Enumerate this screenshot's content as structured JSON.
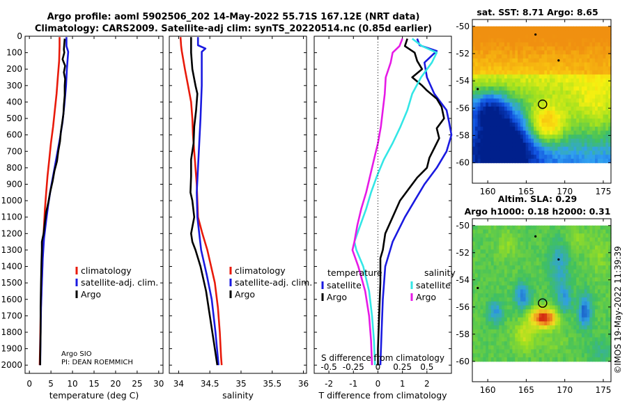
{
  "header": {
    "title_line1": "Argo profile: aoml 5902506_202 14-May-2022 55.71S 167.12E (NRT data)",
    "title_line2": "Climatology: CARS2009. Satellite-adj clim: synTS_20220514.nc (0.85d earlier)"
  },
  "credit": "©IMOS 19-May-2022 11:39:39",
  "colors": {
    "climatology": "#e81a0a",
    "satellite": "#1a1ae0",
    "argo": "#000000",
    "sat_salinity": "#33e6e6",
    "argo_salinity_diff": "#e61ae6"
  },
  "chart_data": [
    {
      "type": "line",
      "id": "temperature-panel",
      "xlabel": "temperature (deg C)",
      "ylabel": "",
      "xlim": [
        -1,
        31
      ],
      "ylim": [
        2050,
        0
      ],
      "xticks": [
        "0",
        "5",
        "10",
        "15",
        "20",
        "25",
        "30"
      ],
      "yticks": [
        "0",
        "100",
        "200",
        "300",
        "400",
        "500",
        "600",
        "700",
        "800",
        "900",
        "1000",
        "1100",
        "1200",
        "1300",
        "1400",
        "1500",
        "1600",
        "1700",
        "1800",
        "1900",
        "2000"
      ],
      "legend_position": "lower-right",
      "annotation_lines": [
        "Argo SIO",
        "PI: DEAN ROEMMICH"
      ],
      "series": [
        {
          "name": "climatology",
          "color": "#e81a0a",
          "points": [
            [
              7.0,
              5
            ],
            [
              7.0,
              60
            ],
            [
              6.9,
              150
            ],
            [
              6.6,
              250
            ],
            [
              6.3,
              350
            ],
            [
              5.9,
              450
            ],
            [
              5.5,
              550
            ],
            [
              5.0,
              650
            ],
            [
              4.6,
              750
            ],
            [
              4.2,
              850
            ],
            [
              3.9,
              950
            ],
            [
              3.6,
              1050
            ],
            [
              3.4,
              1150
            ],
            [
              3.2,
              1250
            ],
            [
              3.0,
              1400
            ],
            [
              2.8,
              1550
            ],
            [
              2.6,
              1700
            ],
            [
              2.5,
              1850
            ],
            [
              2.4,
              2000
            ]
          ]
        },
        {
          "name": "satellite-adj. clim.",
          "color": "#1a1ae0",
          "points": [
            [
              8.6,
              5
            ],
            [
              8.6,
              60
            ],
            [
              9.0,
              95
            ],
            [
              8.7,
              200
            ],
            [
              8.5,
              300
            ],
            [
              8.1,
              420
            ],
            [
              7.7,
              520
            ],
            [
              7.1,
              620
            ],
            [
              6.4,
              720
            ],
            [
              5.7,
              820
            ],
            [
              5.0,
              920
            ],
            [
              4.4,
              1020
            ],
            [
              3.9,
              1120
            ],
            [
              3.4,
              1230
            ],
            [
              3.1,
              1350
            ],
            [
              2.9,
              1500
            ],
            [
              2.7,
              1650
            ],
            [
              2.6,
              1800
            ],
            [
              2.5,
              2000
            ]
          ]
        },
        {
          "name": "Argo",
          "color": "#000000",
          "points": [
            [
              8.2,
              15
            ],
            [
              8.0,
              80
            ],
            [
              8.1,
              100
            ],
            [
              7.7,
              140
            ],
            [
              8.3,
              180
            ],
            [
              8.0,
              220
            ],
            [
              8.3,
              260
            ],
            [
              8.2,
              300
            ],
            [
              8.2,
              360
            ],
            [
              8.0,
              420
            ],
            [
              7.9,
              470
            ],
            [
              7.6,
              530
            ],
            [
              7.3,
              580
            ],
            [
              7.1,
              640
            ],
            [
              6.7,
              700
            ],
            [
              6.4,
              760
            ],
            [
              5.8,
              820
            ],
            [
              5.4,
              880
            ],
            [
              4.8,
              950
            ],
            [
              4.4,
              1010
            ],
            [
              3.9,
              1070
            ],
            [
              3.6,
              1130
            ],
            [
              3.3,
              1200
            ],
            [
              2.9,
              1250
            ],
            [
              2.9,
              1300
            ],
            [
              2.8,
              1380
            ],
            [
              2.7,
              1500
            ],
            [
              2.6,
              1650
            ],
            [
              2.6,
              1800
            ],
            [
              2.5,
              1950
            ],
            [
              2.5,
              2000
            ]
          ]
        }
      ]
    },
    {
      "type": "line",
      "id": "salinity-panel",
      "xlabel": "salinity",
      "ylabel": "",
      "xlim": [
        33.85,
        36.05
      ],
      "ylim": [
        2050,
        0
      ],
      "xticks": [
        "34",
        "34.5",
        "35",
        "35.5",
        "36"
      ],
      "legend_position": "lower-right",
      "series": [
        {
          "name": "climatology",
          "color": "#e81a0a",
          "points": [
            [
              34.03,
              5
            ],
            [
              34.04,
              60
            ],
            [
              34.05,
              90
            ],
            [
              34.1,
              200
            ],
            [
              34.15,
              300
            ],
            [
              34.2,
              400
            ],
            [
              34.22,
              500
            ],
            [
              34.23,
              600
            ],
            [
              34.25,
              700
            ],
            [
              34.27,
              800
            ],
            [
              34.29,
              900
            ],
            [
              34.3,
              1000
            ],
            [
              34.31,
              1100
            ],
            [
              34.38,
              1200
            ],
            [
              34.46,
              1300
            ],
            [
              34.52,
              1400
            ],
            [
              34.58,
              1500
            ],
            [
              34.63,
              1650
            ],
            [
              34.66,
              1800
            ],
            [
              34.68,
              1950
            ],
            [
              34.69,
              2000
            ]
          ]
        },
        {
          "name": "satellite-adj. clim.",
          "color": "#1a1ae0",
          "points": [
            [
              34.31,
              5
            ],
            [
              34.31,
              55
            ],
            [
              34.43,
              75
            ],
            [
              34.37,
              95
            ],
            [
              34.37,
              200
            ],
            [
              34.37,
              300
            ],
            [
              34.35,
              500
            ],
            [
              34.33,
              650
            ],
            [
              34.31,
              800
            ],
            [
              34.29,
              950
            ],
            [
              34.3,
              1100
            ],
            [
              34.36,
              1300
            ],
            [
              34.45,
              1450
            ],
            [
              34.53,
              1600
            ],
            [
              34.59,
              1800
            ],
            [
              34.64,
              2000
            ]
          ]
        },
        {
          "name": "Argo",
          "color": "#000000",
          "points": [
            [
              34.2,
              5
            ],
            [
              34.2,
              50
            ],
            [
              34.2,
              100
            ],
            [
              34.22,
              200
            ],
            [
              34.27,
              300
            ],
            [
              34.3,
              350
            ],
            [
              34.28,
              450
            ],
            [
              34.25,
              550
            ],
            [
              34.24,
              650
            ],
            [
              34.2,
              750
            ],
            [
              34.2,
              850
            ],
            [
              34.19,
              950
            ],
            [
              34.22,
              1000
            ],
            [
              34.25,
              1100
            ],
            [
              34.2,
              1200
            ],
            [
              34.22,
              1250
            ],
            [
              34.27,
              1300
            ],
            [
              34.35,
              1400
            ],
            [
              34.44,
              1550
            ],
            [
              34.5,
              1700
            ],
            [
              34.56,
              1850
            ],
            [
              34.62,
              2000
            ]
          ]
        }
      ]
    },
    {
      "type": "line",
      "id": "difference-panel",
      "xlabel": "T difference from climatology",
      "x2label": "S difference from climatology",
      "xlim": [
        -2.6,
        3.0
      ],
      "x2lim": [
        -0.65,
        0.75
      ],
      "ylim": [
        2050,
        0
      ],
      "xticks": [
        "-2",
        "-1",
        "0",
        "1",
        "2"
      ],
      "x2ticks": [
        "-0.5",
        "-0.25",
        "0",
        "0.25",
        "0.5"
      ],
      "legend_left_title": "temperature",
      "legend_right_title": "salinity",
      "series": [
        {
          "name": "satellite",
          "group": "temperature",
          "color": "#1a1ae0",
          "points": [
            [
              1.6,
              15
            ],
            [
              1.7,
              55
            ],
            [
              2.4,
              90
            ],
            [
              1.9,
              160
            ],
            [
              2.0,
              250
            ],
            [
              2.3,
              350
            ],
            [
              2.8,
              450
            ],
            [
              2.9,
              520
            ],
            [
              3.0,
              600
            ],
            [
              2.8,
              700
            ],
            [
              2.4,
              800
            ],
            [
              1.9,
              900
            ],
            [
              1.5,
              1000
            ],
            [
              1.1,
              1100
            ],
            [
              0.6,
              1250
            ],
            [
              0.3,
              1400
            ],
            [
              0.2,
              1600
            ],
            [
              0.15,
              1800
            ],
            [
              0.1,
              2000
            ]
          ]
        },
        {
          "name": "Argo",
          "group": "temperature",
          "color": "#000000",
          "points": [
            [
              1.2,
              15
            ],
            [
              1.1,
              60
            ],
            [
              1.5,
              100
            ],
            [
              1.6,
              150
            ],
            [
              1.8,
              200
            ],
            [
              1.4,
              250
            ],
            [
              1.8,
              300
            ],
            [
              2.0,
              330
            ],
            [
              2.4,
              380
            ],
            [
              2.6,
              430
            ],
            [
              2.7,
              500
            ],
            [
              2.4,
              560
            ],
            [
              2.5,
              620
            ],
            [
              2.3,
              680
            ],
            [
              2.1,
              740
            ],
            [
              2.0,
              800
            ],
            [
              1.6,
              860
            ],
            [
              1.3,
              920
            ],
            [
              0.9,
              1000
            ],
            [
              0.6,
              1100
            ],
            [
              0.3,
              1200
            ],
            [
              0.2,
              1300
            ],
            [
              0.1,
              1350
            ],
            [
              0.1,
              1500
            ],
            [
              0.05,
              1700
            ],
            [
              0.0,
              1900
            ],
            [
              0.0,
              2000
            ]
          ]
        },
        {
          "name": "satellite",
          "group": "salinity",
          "color": "#33e6e6",
          "points": [
            [
              0.35,
              15
            ],
            [
              0.45,
              60
            ],
            [
              0.6,
              100
            ],
            [
              0.55,
              160
            ],
            [
              0.44,
              250
            ],
            [
              0.35,
              350
            ],
            [
              0.3,
              450
            ],
            [
              0.23,
              550
            ],
            [
              0.15,
              650
            ],
            [
              0.06,
              750
            ],
            [
              -0.01,
              850
            ],
            [
              -0.07,
              950
            ],
            [
              -0.12,
              1050
            ],
            [
              -0.18,
              1150
            ],
            [
              -0.24,
              1250
            ],
            [
              -0.22,
              1300
            ],
            [
              -0.15,
              1400
            ],
            [
              -0.09,
              1550
            ],
            [
              -0.06,
              1700
            ],
            [
              -0.04,
              1850
            ],
            [
              -0.03,
              2000
            ]
          ]
        },
        {
          "name": "Argo",
          "group": "salinity",
          "color": "#e61ae6",
          "points": [
            [
              0.25,
              15
            ],
            [
              0.22,
              60
            ],
            [
              0.15,
              100
            ],
            [
              0.13,
              160
            ],
            [
              0.08,
              250
            ],
            [
              0.07,
              350
            ],
            [
              0.05,
              450
            ],
            [
              0.03,
              550
            ],
            [
              0.0,
              650
            ],
            [
              -0.04,
              750
            ],
            [
              -0.08,
              850
            ],
            [
              -0.12,
              950
            ],
            [
              -0.17,
              1050
            ],
            [
              -0.21,
              1150
            ],
            [
              -0.24,
              1250
            ],
            [
              -0.26,
              1300
            ],
            [
              -0.2,
              1400
            ],
            [
              -0.13,
              1550
            ],
            [
              -0.09,
              1700
            ],
            [
              -0.07,
              1850
            ],
            [
              -0.06,
              2000
            ]
          ]
        }
      ]
    },
    {
      "type": "heatmap",
      "id": "sst-map",
      "title": "sat. SST: 8.71 Argo: 8.65",
      "xlim": [
        158,
        176
      ],
      "ylim": [
        -61.5,
        -49.5
      ],
      "data_ylim": [
        -60,
        -50
      ],
      "xticks": [
        "160",
        "165",
        "170",
        "175"
      ],
      "yticks": [
        "-50",
        "-52",
        "-54",
        "-56",
        "-58",
        "-60"
      ],
      "profile_location": [
        167.12,
        -55.71
      ],
      "nearby_floats": [
        [
          166.2,
          -50.6
        ],
        [
          169.2,
          -52.5
        ],
        [
          158.7,
          -54.6
        ]
      ],
      "colormap": [
        "#00208c",
        "#1050e0",
        "#30a0f0",
        "#40c060",
        "#9ee020",
        "#f8f010",
        "#f8c010",
        "#f09010"
      ]
    },
    {
      "type": "heatmap",
      "id": "sla-map",
      "title": "Altim. SLA: 0.29",
      "subtitle": "Argo h1000: 0.18 h2000: 0.31",
      "xlim": [
        158,
        176
      ],
      "ylim": [
        -61.5,
        -49.5
      ],
      "data_ylim": [
        -60,
        -50
      ],
      "xticks": [
        "160",
        "165",
        "170",
        "175"
      ],
      "yticks": [
        "-50",
        "-52",
        "-54",
        "-56",
        "-58",
        "-60"
      ],
      "profile_location": [
        167.12,
        -55.71
      ],
      "nearby_floats": [
        [
          166.2,
          -50.8
        ],
        [
          169.2,
          -52.5
        ],
        [
          158.7,
          -54.6
        ]
      ],
      "colormap": [
        "#1040c0",
        "#30a0e0",
        "#40c060",
        "#9ee020",
        "#f0e020",
        "#f09020",
        "#d02010"
      ]
    }
  ]
}
